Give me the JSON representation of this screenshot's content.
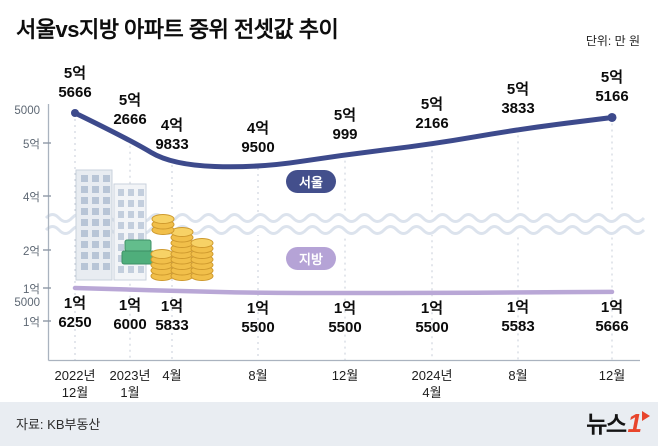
{
  "header": {
    "title": "서울vs지방 아파트 중위 전셋값 추이",
    "unit": "단위: 만 원"
  },
  "badges": {
    "seoul": "서울",
    "local": "지방"
  },
  "footer": {
    "source": "자료: KB부동산",
    "logo_text": "뉴스",
    "logo_one": "1"
  },
  "colors": {
    "seoul_line": "#3d4a8c",
    "local_line": "#b9a7d6",
    "logo_red": "#e8452c"
  },
  "chart_data": {
    "type": "line",
    "title": "서울vs지방 아파트 중위 전셋값 추이",
    "unit": "만 원",
    "grid": "vertical-dotted",
    "axis_break": true,
    "x": [
      "2022년 12월",
      "2023년 1월",
      "4월",
      "8월",
      "12월",
      "2024년 4월",
      "8월",
      "12월"
    ],
    "series": [
      {
        "name": "서울",
        "color": "#3d4a8c",
        "values": [
          55666,
          52666,
          49833,
          49500,
          50999,
          52166,
          53833,
          55166
        ],
        "point_labels": [
          "5억 5666",
          "5억 2666",
          "4억 9833",
          "4억 9500",
          "5억 999",
          "5억 2166",
          "5억 3833",
          "5억 5166"
        ]
      },
      {
        "name": "지방",
        "color": "#b9a7d6",
        "values": [
          16250,
          16000,
          15833,
          15500,
          15500,
          15500,
          15583,
          15666
        ],
        "point_labels": [
          "1억 6250",
          "1억 6000",
          "1억 5833",
          "1억 5500",
          "1억 5500",
          "1억 5500",
          "1억 5583",
          "1억 5666"
        ]
      }
    ],
    "y_axis": [
      {
        "label": "5000",
        "tick": false
      },
      {
        "label": "5억",
        "tick": true
      },
      {
        "label": "4억",
        "tick": true
      },
      {
        "label": "2억",
        "tick": true
      },
      {
        "label": "1억",
        "tick": true
      },
      {
        "label": "5000",
        "tick": false
      },
      {
        "label": "1억",
        "tick": true
      }
    ]
  }
}
